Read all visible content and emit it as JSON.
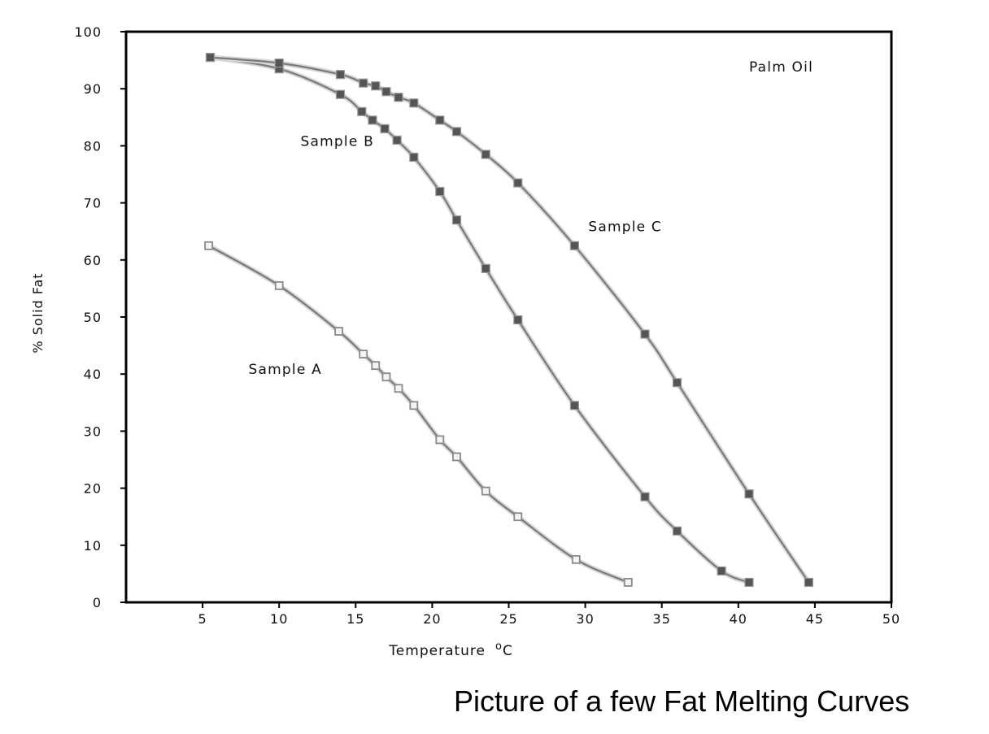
{
  "caption": "Picture of a few Fat Melting Curves",
  "chart_data": {
    "type": "line",
    "title": "",
    "xlabel": "Temperature",
    "xlabel_unit": "oC",
    "ylabel": "% Solid Fat",
    "xlim": [
      0,
      50
    ],
    "ylim": [
      0,
      100
    ],
    "x_ticks": [
      5,
      10,
      15,
      20,
      25,
      30,
      35,
      40,
      45,
      50
    ],
    "y_ticks": [
      0,
      10,
      20,
      30,
      40,
      50,
      60,
      70,
      80,
      90,
      100
    ],
    "grid": false,
    "colors": {
      "line": "#7a7a7a",
      "marker": "#555555",
      "frame": "#000000"
    },
    "annotations": [
      {
        "text": "Palm Oil",
        "x": 40.7,
        "y": 93
      },
      {
        "text": "Sample B",
        "x": 11.4,
        "y": 80
      },
      {
        "text": "Sample C",
        "x": 30.2,
        "y": 65
      },
      {
        "text": "Sample A",
        "x": 8.0,
        "y": 40
      }
    ],
    "series": [
      {
        "name": "Sample A",
        "marker": "hollow-square",
        "x": [
          5.4,
          10.0,
          13.9,
          15.5,
          16.3,
          17.0,
          17.8,
          18.8,
          20.5,
          21.6,
          23.5,
          25.6,
          29.4,
          32.8
        ],
        "y": [
          62.5,
          55.5,
          47.5,
          43.5,
          41.5,
          39.5,
          37.5,
          34.5,
          28.5,
          25.5,
          19.5,
          15.0,
          7.5,
          3.5
        ]
      },
      {
        "name": "Sample B",
        "marker": "filled-square",
        "x": [
          5.5,
          10.0,
          14.0,
          15.4,
          16.1,
          16.9,
          17.7,
          18.8,
          20.5,
          21.6,
          23.5,
          25.6,
          29.3,
          33.9,
          36.0,
          38.9,
          40.7
        ],
        "y": [
          95.5,
          93.5,
          89.0,
          86.0,
          84.5,
          83.0,
          81.0,
          78.0,
          72.0,
          67.0,
          58.5,
          49.5,
          34.5,
          18.5,
          12.5,
          5.5,
          3.5
        ]
      },
      {
        "name": "Sample C",
        "marker": "filled-square",
        "x": [
          5.5,
          10.0,
          14.0,
          15.5,
          16.3,
          17.0,
          17.8,
          18.8,
          20.5,
          21.6,
          23.5,
          25.6,
          29.3,
          33.9,
          36.0,
          40.7,
          44.6
        ],
        "y": [
          95.5,
          94.5,
          92.5,
          91.0,
          90.5,
          89.5,
          88.5,
          87.5,
          84.5,
          82.5,
          78.5,
          73.5,
          62.5,
          47.0,
          38.5,
          19.0,
          3.5
        ]
      }
    ]
  }
}
